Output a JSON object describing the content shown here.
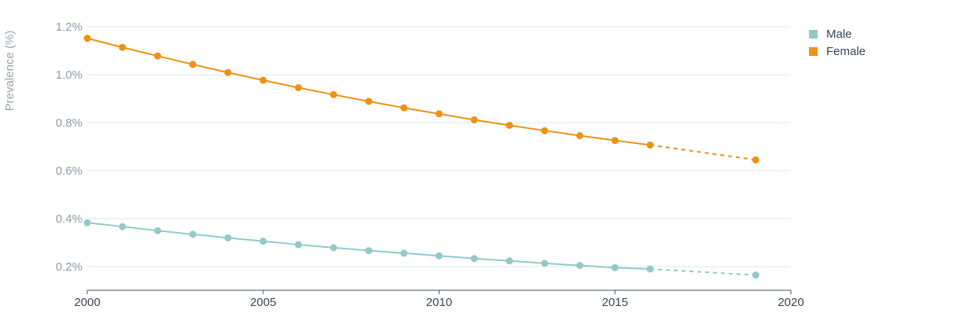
{
  "chart_data": {
    "type": "line",
    "ylabel": "Prevalence (%)",
    "xlim": [
      2000,
      2020
    ],
    "ylim": [
      0.1,
      1.2
    ],
    "y_ticks": [
      {
        "value": 0.2,
        "label": "0.2%"
      },
      {
        "value": 0.4,
        "label": "0.4%"
      },
      {
        "value": 0.6,
        "label": "0.6%"
      },
      {
        "value": 0.8,
        "label": "0.8%"
      },
      {
        "value": 1.0,
        "label": "1.0%"
      },
      {
        "value": 1.2,
        "label": "1.2%"
      }
    ],
    "x_ticks": [
      {
        "value": 2000,
        "label": "2000"
      },
      {
        "value": 2005,
        "label": "2005"
      },
      {
        "value": 2010,
        "label": "2010"
      },
      {
        "value": 2015,
        "label": "2015"
      },
      {
        "value": 2020,
        "label": "2020"
      }
    ],
    "grid": true,
    "legend_position": "top-right",
    "series": [
      {
        "name": "Male",
        "color": "#93c9c6",
        "x": [
          2000,
          2001,
          2002,
          2003,
          2004,
          2005,
          2006,
          2007,
          2008,
          2009,
          2010,
          2011,
          2012,
          2013,
          2014,
          2015,
          2016
        ],
        "y": [
          0.383,
          0.367,
          0.35,
          0.335,
          0.32,
          0.306,
          0.292,
          0.279,
          0.267,
          0.256,
          0.245,
          0.234,
          0.224,
          0.214,
          0.205,
          0.196,
          0.19
        ],
        "projected_x": [
          2016,
          2019
        ],
        "projected_y": [
          0.19,
          0.165
        ]
      },
      {
        "name": "Female",
        "color": "#ee9115",
        "x": [
          2000,
          2001,
          2002,
          2003,
          2004,
          2005,
          2006,
          2007,
          2008,
          2009,
          2010,
          2011,
          2012,
          2013,
          2014,
          2015,
          2016
        ],
        "y": [
          1.152,
          1.114,
          1.078,
          1.043,
          1.009,
          0.977,
          0.946,
          0.917,
          0.889,
          0.862,
          0.837,
          0.812,
          0.789,
          0.767,
          0.746,
          0.726,
          0.707
        ],
        "projected_x": [
          2016,
          2019
        ],
        "projected_y": [
          0.707,
          0.645
        ]
      }
    ]
  }
}
